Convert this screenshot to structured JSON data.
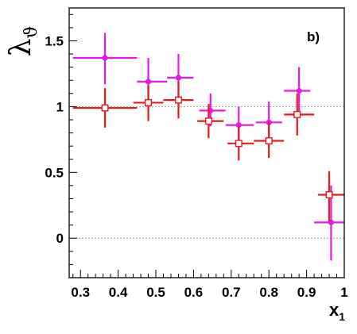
{
  "chart_data": {
    "type": "scatter",
    "panel_label": "b)",
    "ylabel": "λ",
    "ylabel_sub": "ϑ",
    "xlabel": "x",
    "xlabel_sub": "1",
    "xlim": [
      0.27,
      1.0
    ],
    "ylim": [
      -0.3,
      1.75
    ],
    "x_ticks": [
      0.3,
      0.4,
      0.5,
      0.6,
      0.7,
      0.8,
      0.9,
      1.0
    ],
    "x_tick_labels": [
      "0.3",
      "0.4",
      "0.5",
      "0.6",
      "0.7",
      "0.8",
      "0.9",
      "1"
    ],
    "y_ticks": [
      0,
      0.5,
      1,
      1.5
    ],
    "y_tick_labels": [
      "0",
      "0.5",
      "1",
      "1.5"
    ],
    "reference_lines": [
      0,
      1
    ],
    "series": [
      {
        "marker": "filled-circle",
        "color": "#e619e6",
        "points": [
          {
            "x": 0.365,
            "y": 1.37,
            "xlo": 0.28,
            "xhi": 0.45,
            "ylo": 1.17,
            "yhi": 1.56
          },
          {
            "x": 0.48,
            "y": 1.19,
            "xlo": 0.45,
            "xhi": 0.53,
            "ylo": 1.0,
            "yhi": 1.37
          },
          {
            "x": 0.56,
            "y": 1.22,
            "xlo": 0.53,
            "xhi": 0.6,
            "ylo": 1.03,
            "yhi": 1.4
          },
          {
            "x": 0.645,
            "y": 0.97,
            "xlo": 0.615,
            "xhi": 0.685,
            "ylo": 0.85,
            "yhi": 1.1
          },
          {
            "x": 0.72,
            "y": 0.86,
            "xlo": 0.685,
            "xhi": 0.76,
            "ylo": 0.72,
            "yhi": 1.0
          },
          {
            "x": 0.8,
            "y": 0.88,
            "xlo": 0.765,
            "xhi": 0.835,
            "ylo": 0.72,
            "yhi": 1.04
          },
          {
            "x": 0.88,
            "y": 1.12,
            "xlo": 0.84,
            "xhi": 0.91,
            "ylo": 0.94,
            "yhi": 1.3
          },
          {
            "x": 0.965,
            "y": 0.12,
            "xlo": 0.92,
            "xhi": 1.0,
            "ylo": -0.17,
            "yhi": 0.4
          }
        ]
      },
      {
        "marker": "open-square",
        "color": "#e61919",
        "points": [
          {
            "x": 0.365,
            "y": 0.99,
            "xlo": 0.28,
            "xhi": 0.45,
            "ylo": 0.84,
            "yhi": 1.14
          },
          {
            "x": 0.48,
            "y": 1.03,
            "xlo": 0.44,
            "xhi": 0.52,
            "ylo": 0.89,
            "yhi": 1.16
          },
          {
            "x": 0.56,
            "y": 1.05,
            "xlo": 0.52,
            "xhi": 0.6,
            "ylo": 0.91,
            "yhi": 1.19
          },
          {
            "x": 0.64,
            "y": 0.89,
            "xlo": 0.61,
            "xhi": 0.68,
            "ylo": 0.76,
            "yhi": 1.02
          },
          {
            "x": 0.72,
            "y": 0.72,
            "xlo": 0.69,
            "xhi": 0.76,
            "ylo": 0.59,
            "yhi": 0.85
          },
          {
            "x": 0.8,
            "y": 0.74,
            "xlo": 0.76,
            "xhi": 0.84,
            "ylo": 0.61,
            "yhi": 0.88
          },
          {
            "x": 0.875,
            "y": 0.94,
            "xlo": 0.84,
            "xhi": 0.92,
            "ylo": 0.78,
            "yhi": 1.1
          },
          {
            "x": 0.96,
            "y": 0.33,
            "xlo": 0.93,
            "xhi": 1.0,
            "ylo": 0.13,
            "yhi": 0.51
          }
        ]
      }
    ]
  }
}
